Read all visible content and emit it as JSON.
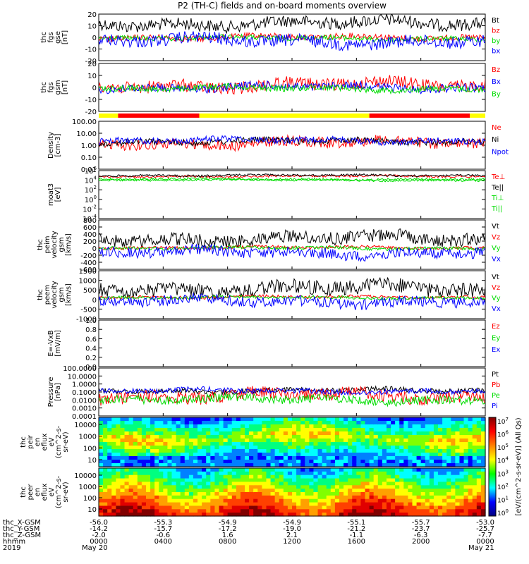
{
  "title": "P2 (TH-C) fields and on-board moments overview",
  "colors": {
    "black": "#000000",
    "red": "#ff0000",
    "green": "#00dd00",
    "blue": "#0000ff",
    "yellow": "#ffff00",
    "dark_red": "#a00000"
  },
  "chart_data": [
    {
      "type": "line",
      "id": "fgs-gse",
      "ylabel": [
        "thc",
        "fgs",
        "gse",
        "[nT]"
      ],
      "yticks": [
        "20",
        "10",
        "0",
        "-10",
        "-20"
      ],
      "ylim": [
        -20,
        20
      ],
      "series": [
        {
          "name": "Bt",
          "color": "black"
        },
        {
          "name": "bz",
          "color": "red"
        },
        {
          "name": "by",
          "color": "green"
        },
        {
          "name": "bx",
          "color": "blue"
        }
      ]
    },
    {
      "type": "line",
      "id": "fgs-gsm",
      "ylabel": [
        "thc",
        "fgs",
        "gsm",
        "[nT]"
      ],
      "yticks": [
        "20",
        "10",
        "0",
        "-10",
        "-20"
      ],
      "ylim": [
        -25,
        25
      ],
      "series": [
        {
          "name": "Bz",
          "color": "red"
        },
        {
          "name": "Bx",
          "color": "blue"
        },
        {
          "name": "By",
          "color": "green"
        }
      ]
    },
    {
      "type": "line",
      "id": "density",
      "ylabel": [
        "Density",
        "[cm-3]"
      ],
      "yticks": [
        "100.00",
        "10.00",
        "1.00",
        "0.10",
        "0.01"
      ],
      "scale": "log",
      "series": [
        {
          "name": "Ne",
          "color": "red"
        },
        {
          "name": "Ni",
          "color": "black"
        },
        {
          "name": "Npot",
          "color": "blue"
        }
      ]
    },
    {
      "type": "line",
      "id": "temperature",
      "ylabel": [
        "moat3",
        "[eV]"
      ],
      "yticks": [
        "10",
        "10",
        "10",
        "10",
        "10",
        "10"
      ],
      "ytick_exponents": [
        "6",
        "4",
        "2",
        "0",
        "-2",
        "-4"
      ],
      "scale": "log",
      "series": [
        {
          "name": "Te⊥",
          "color": "red"
        },
        {
          "name": "Te||",
          "color": "black"
        },
        {
          "name": "Ti⊥",
          "color": "green"
        },
        {
          "name": "Ti||",
          "color": "green"
        }
      ]
    },
    {
      "type": "line",
      "id": "ion-velocity",
      "ylabel": [
        "thc",
        "peim",
        "velocity",
        "gsm",
        "[km/s]"
      ],
      "yticks": [
        "800",
        "600",
        "400",
        "200",
        "0",
        "-200",
        "-400",
        "-600"
      ],
      "ylim": [
        -600,
        800
      ],
      "series": [
        {
          "name": "Vt",
          "color": "black"
        },
        {
          "name": "Vz",
          "color": "red"
        },
        {
          "name": "Vy",
          "color": "green"
        },
        {
          "name": "Vx",
          "color": "blue"
        }
      ]
    },
    {
      "type": "line",
      "id": "electron-velocity",
      "ylabel": [
        "thc",
        "peem",
        "velocity",
        "gsm",
        "[km/s]"
      ],
      "yticks": [
        "1500",
        "1000",
        "500",
        "0",
        "-500",
        "-1000"
      ],
      "ylim": [
        -1000,
        1500
      ],
      "series": [
        {
          "name": "Vt",
          "color": "black"
        },
        {
          "name": "Vz",
          "color": "red"
        },
        {
          "name": "Vy",
          "color": "green"
        },
        {
          "name": "Vx",
          "color": "blue"
        }
      ]
    },
    {
      "type": "line",
      "id": "electric-field",
      "ylabel": [
        "E=-VxB",
        "[mV/m]"
      ],
      "yticks": [
        "1.0",
        "0.8",
        "0.6",
        "0.4",
        "0.2",
        "0.0"
      ],
      "ylim": [
        0,
        1
      ],
      "series": [
        {
          "name": "Ez",
          "color": "red"
        },
        {
          "name": "Ey",
          "color": "green"
        },
        {
          "name": "Ex",
          "color": "blue"
        }
      ]
    },
    {
      "type": "line",
      "id": "pressure",
      "ylabel": [
        "Pressure",
        "[nPa]"
      ],
      "yticks": [
        "100.0000",
        "10.0000",
        "1.0000",
        "0.1000",
        "0.0100",
        "0.0010",
        "0.0001"
      ],
      "scale": "log",
      "series": [
        {
          "name": "Pt",
          "color": "black"
        },
        {
          "name": "Pb",
          "color": "red"
        },
        {
          "name": "Pe",
          "color": "green"
        },
        {
          "name": "Pi",
          "color": "blue"
        }
      ]
    },
    {
      "type": "heatmap",
      "id": "ion-energy-flux",
      "ylabel": [
        "thc",
        "peir",
        "en",
        "eflux",
        "eV",
        "(cm^2-s-",
        "sr-eV)"
      ],
      "yticks": [
        "10000",
        "1000",
        "100",
        "10"
      ],
      "scale": "log"
    },
    {
      "type": "heatmap",
      "id": "electron-energy-flux",
      "ylabel": [
        "thc",
        "peer",
        "en",
        "eflux",
        "eV",
        "(cm^2-s-",
        "sr-eV)"
      ],
      "yticks": [
        "10000",
        "1000",
        "100",
        "10"
      ],
      "scale": "log"
    }
  ],
  "colorbar": {
    "label": "[eV/(cm^2-s-sr-eV)] (All Qs)",
    "ticks": [
      "10",
      "10",
      "10",
      "10",
      "10",
      "10",
      "10",
      "10"
    ],
    "exponents": [
      "7",
      "6",
      "5",
      "4",
      "3",
      "2",
      "1",
      "0"
    ]
  },
  "mode_bar": {
    "segments": [
      {
        "from": 0.0,
        "to": 0.05,
        "color": "yellow"
      },
      {
        "from": 0.05,
        "to": 0.26,
        "color": "red"
      },
      {
        "from": 0.26,
        "to": 0.7,
        "color": "yellow"
      },
      {
        "from": 0.7,
        "to": 0.96,
        "color": "red"
      },
      {
        "from": 0.96,
        "to": 1.0,
        "color": "yellow"
      }
    ]
  },
  "x_axis": {
    "row_labels": [
      "thc_X-GSM",
      "thc_Y-GSM",
      "thc_Z-GSM",
      "hhmm",
      "2019"
    ],
    "columns": [
      {
        "values": [
          "-56.0",
          "-14.2",
          "-2.0",
          "0000",
          "May 20"
        ]
      },
      {
        "values": [
          "-55.3",
          "-15.7",
          "-0.6",
          "0400",
          ""
        ]
      },
      {
        "values": [
          "-54.9",
          "-17.2",
          "1.6",
          "0800",
          ""
        ]
      },
      {
        "values": [
          "-54.9",
          "-19.0",
          "2.1",
          "1200",
          ""
        ]
      },
      {
        "values": [
          "-55.1",
          "-21.2",
          "-1.1",
          "1600",
          ""
        ]
      },
      {
        "values": [
          "-55.7",
          "-23.7",
          "-6.3",
          "2000",
          ""
        ]
      },
      {
        "values": [
          "-53.0",
          "-25.7",
          "-7.7",
          "0000",
          "May 21"
        ]
      }
    ]
  }
}
